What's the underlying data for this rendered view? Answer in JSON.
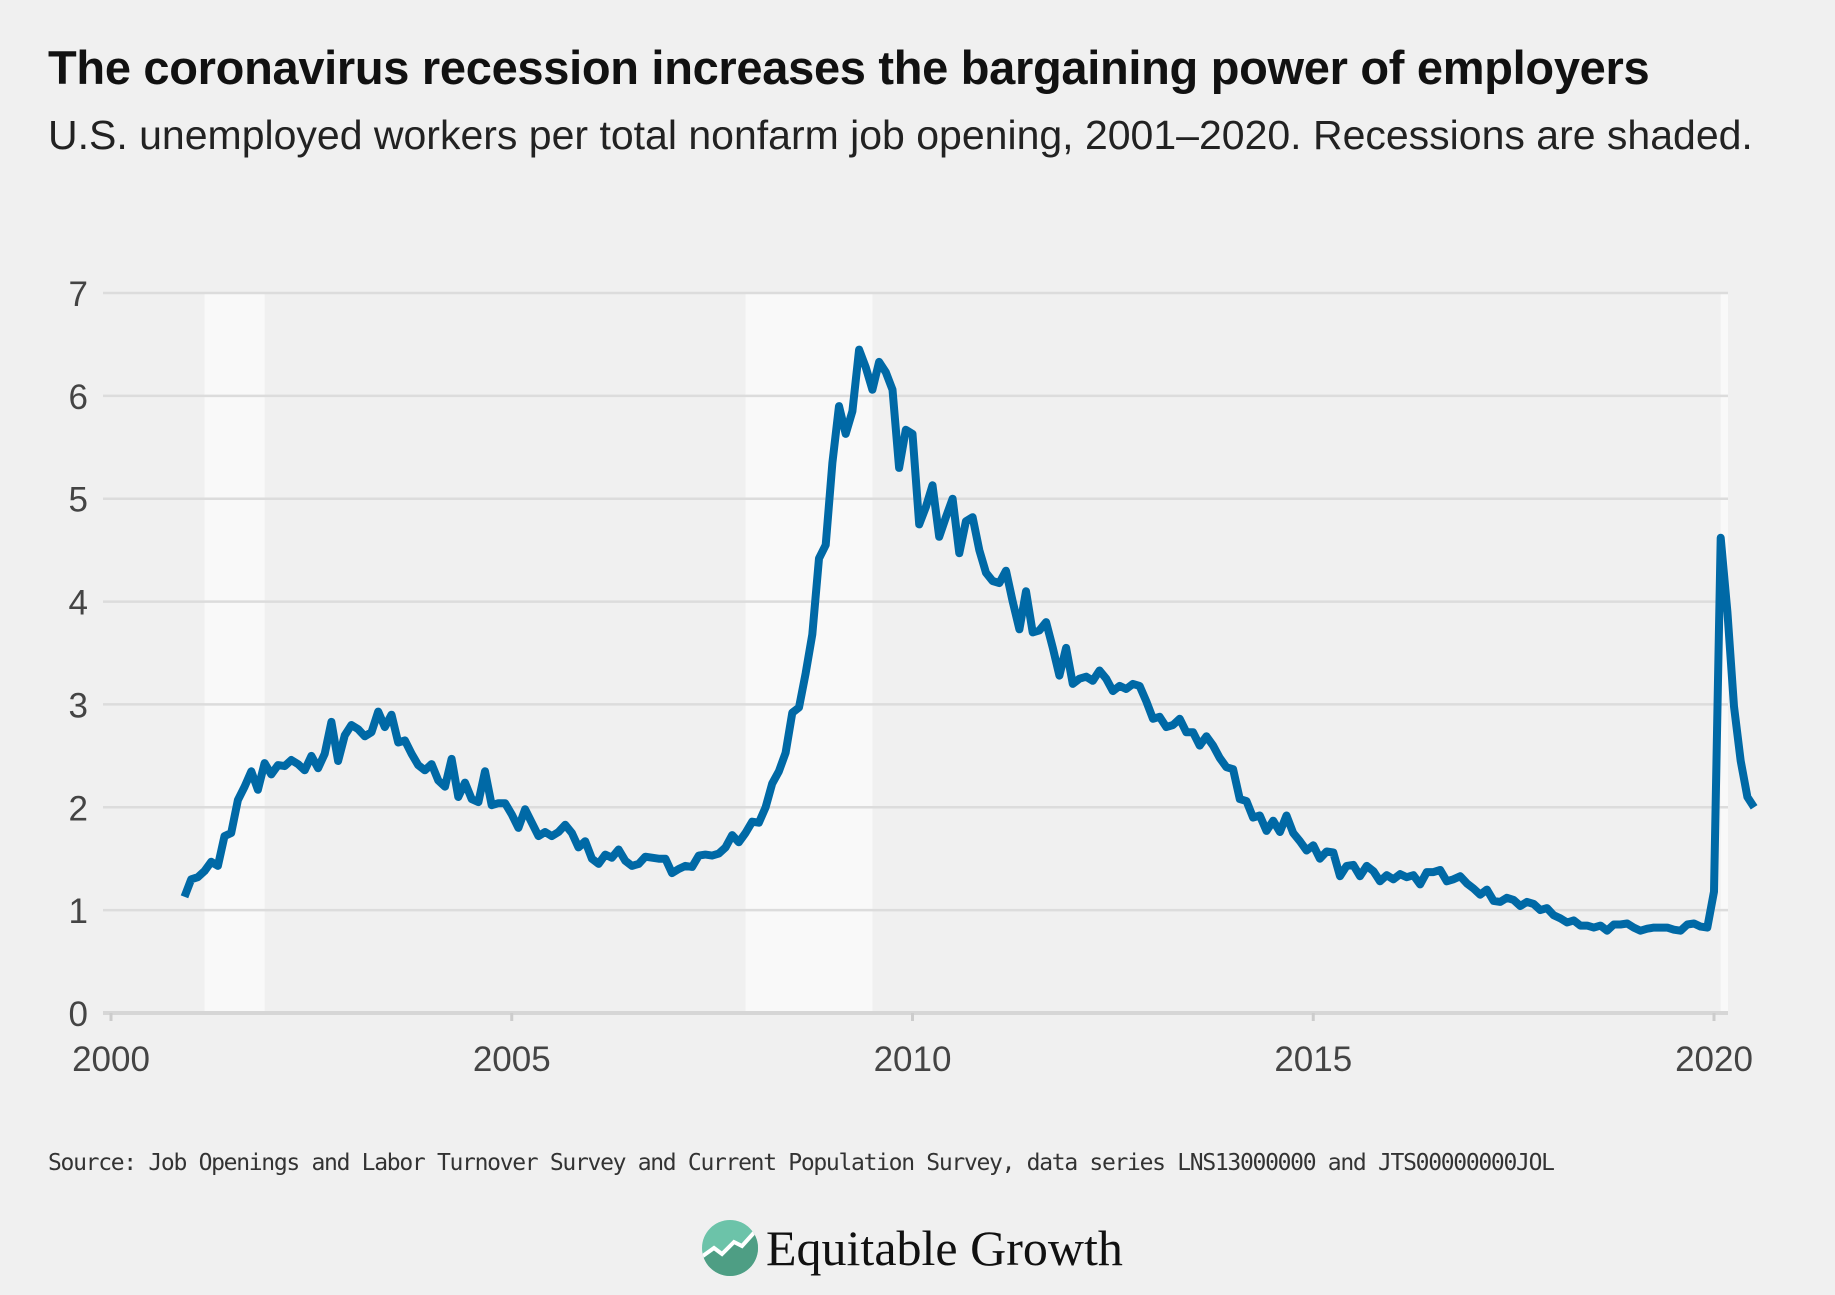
{
  "title": "The coronavirus recession increases the bargaining power of employers",
  "subtitle": "U.S. unemployed workers per total nonfarm job opening, 2001–2020. Recessions are shaded.",
  "source": "Source: Job Openings and Labor Turnover Survey and Current Population Survey, data series LNS13000000 and JTS00000000JOL",
  "logo": {
    "text": "Equitable Growth",
    "color": "#6cc3a9"
  },
  "chart_data": {
    "type": "line",
    "title": "",
    "xlabel": "",
    "ylabel": "",
    "xlim": [
      2000,
      2020.5
    ],
    "ylim": [
      0,
      7
    ],
    "x_ticks": [
      "2000",
      "2005",
      "2010",
      "2015",
      "2020"
    ],
    "y_ticks": [
      "0",
      "1",
      "2",
      "3",
      "4",
      "5",
      "6",
      "7"
    ],
    "grid": "horizontal",
    "line_color": "#0069a6",
    "shading_color": "#f9f9f9",
    "recessions": [
      [
        "2001-03",
        "2001-11"
      ],
      [
        "2007-12",
        "2009-06"
      ],
      [
        "2020-02",
        "2020-06"
      ]
    ],
    "frequency": "monthly",
    "start": "2000-12",
    "values": [
      1.13,
      1.3,
      1.32,
      1.38,
      1.47,
      1.43,
      1.72,
      1.75,
      2.07,
      2.2,
      2.35,
      2.17,
      2.43,
      2.32,
      2.41,
      2.4,
      2.46,
      2.42,
      2.36,
      2.5,
      2.38,
      2.52,
      2.83,
      2.45,
      2.7,
      2.8,
      2.76,
      2.69,
      2.73,
      2.93,
      2.78,
      2.9,
      2.63,
      2.65,
      2.52,
      2.41,
      2.36,
      2.42,
      2.26,
      2.2,
      2.47,
      2.1,
      2.24,
      2.08,
      2.05,
      2.35,
      2.02,
      2.04,
      2.04,
      1.93,
      1.8,
      1.98,
      1.85,
      1.72,
      1.76,
      1.72,
      1.76,
      1.83,
      1.75,
      1.61,
      1.67,
      1.5,
      1.45,
      1.54,
      1.51,
      1.59,
      1.48,
      1.43,
      1.45,
      1.52,
      1.51,
      1.5,
      1.5,
      1.36,
      1.4,
      1.43,
      1.42,
      1.53,
      1.54,
      1.53,
      1.55,
      1.61,
      1.73,
      1.66,
      1.75,
      1.86,
      1.85,
      2.0,
      2.23,
      2.35,
      2.53,
      2.92,
      2.97,
      3.3,
      3.68,
      4.42,
      4.55,
      5.35,
      5.9,
      5.63,
      5.85,
      6.45,
      6.28,
      6.06,
      6.33,
      6.23,
      6.06,
      5.3,
      5.67,
      5.63,
      4.75,
      4.92,
      5.13,
      4.63,
      4.82,
      5.0,
      4.47,
      4.78,
      4.82,
      4.5,
      4.28,
      4.2,
      4.18,
      4.3,
      4.0,
      3.73,
      4.1,
      3.7,
      3.72,
      3.8,
      3.55,
      3.28,
      3.55,
      3.2,
      3.25,
      3.27,
      3.23,
      3.33,
      3.25,
      3.13,
      3.18,
      3.15,
      3.2,
      3.18,
      3.03,
      2.86,
      2.88,
      2.78,
      2.8,
      2.86,
      2.73,
      2.73,
      2.6,
      2.69,
      2.6,
      2.48,
      2.39,
      2.37,
      2.08,
      2.06,
      1.9,
      1.92,
      1.77,
      1.87,
      1.76,
      1.92,
      1.75,
      1.67,
      1.58,
      1.63,
      1.5,
      1.57,
      1.56,
      1.33,
      1.43,
      1.44,
      1.33,
      1.43,
      1.38,
      1.28,
      1.34,
      1.3,
      1.35,
      1.32,
      1.34,
      1.25,
      1.37,
      1.37,
      1.39,
      1.28,
      1.3,
      1.33,
      1.26,
      1.21,
      1.15,
      1.2,
      1.09,
      1.08,
      1.12,
      1.1,
      1.04,
      1.08,
      1.06,
      1.0,
      1.02,
      0.95,
      0.92,
      0.88,
      0.9,
      0.85,
      0.85,
      0.83,
      0.85,
      0.8,
      0.86,
      0.86,
      0.87,
      0.83,
      0.8,
      0.82,
      0.83,
      0.83,
      0.83,
      0.81,
      0.8,
      0.86,
      0.87,
      0.84,
      0.83,
      1.18,
      4.62,
      3.9,
      2.98,
      2.45,
      2.1,
      2.0
    ]
  }
}
